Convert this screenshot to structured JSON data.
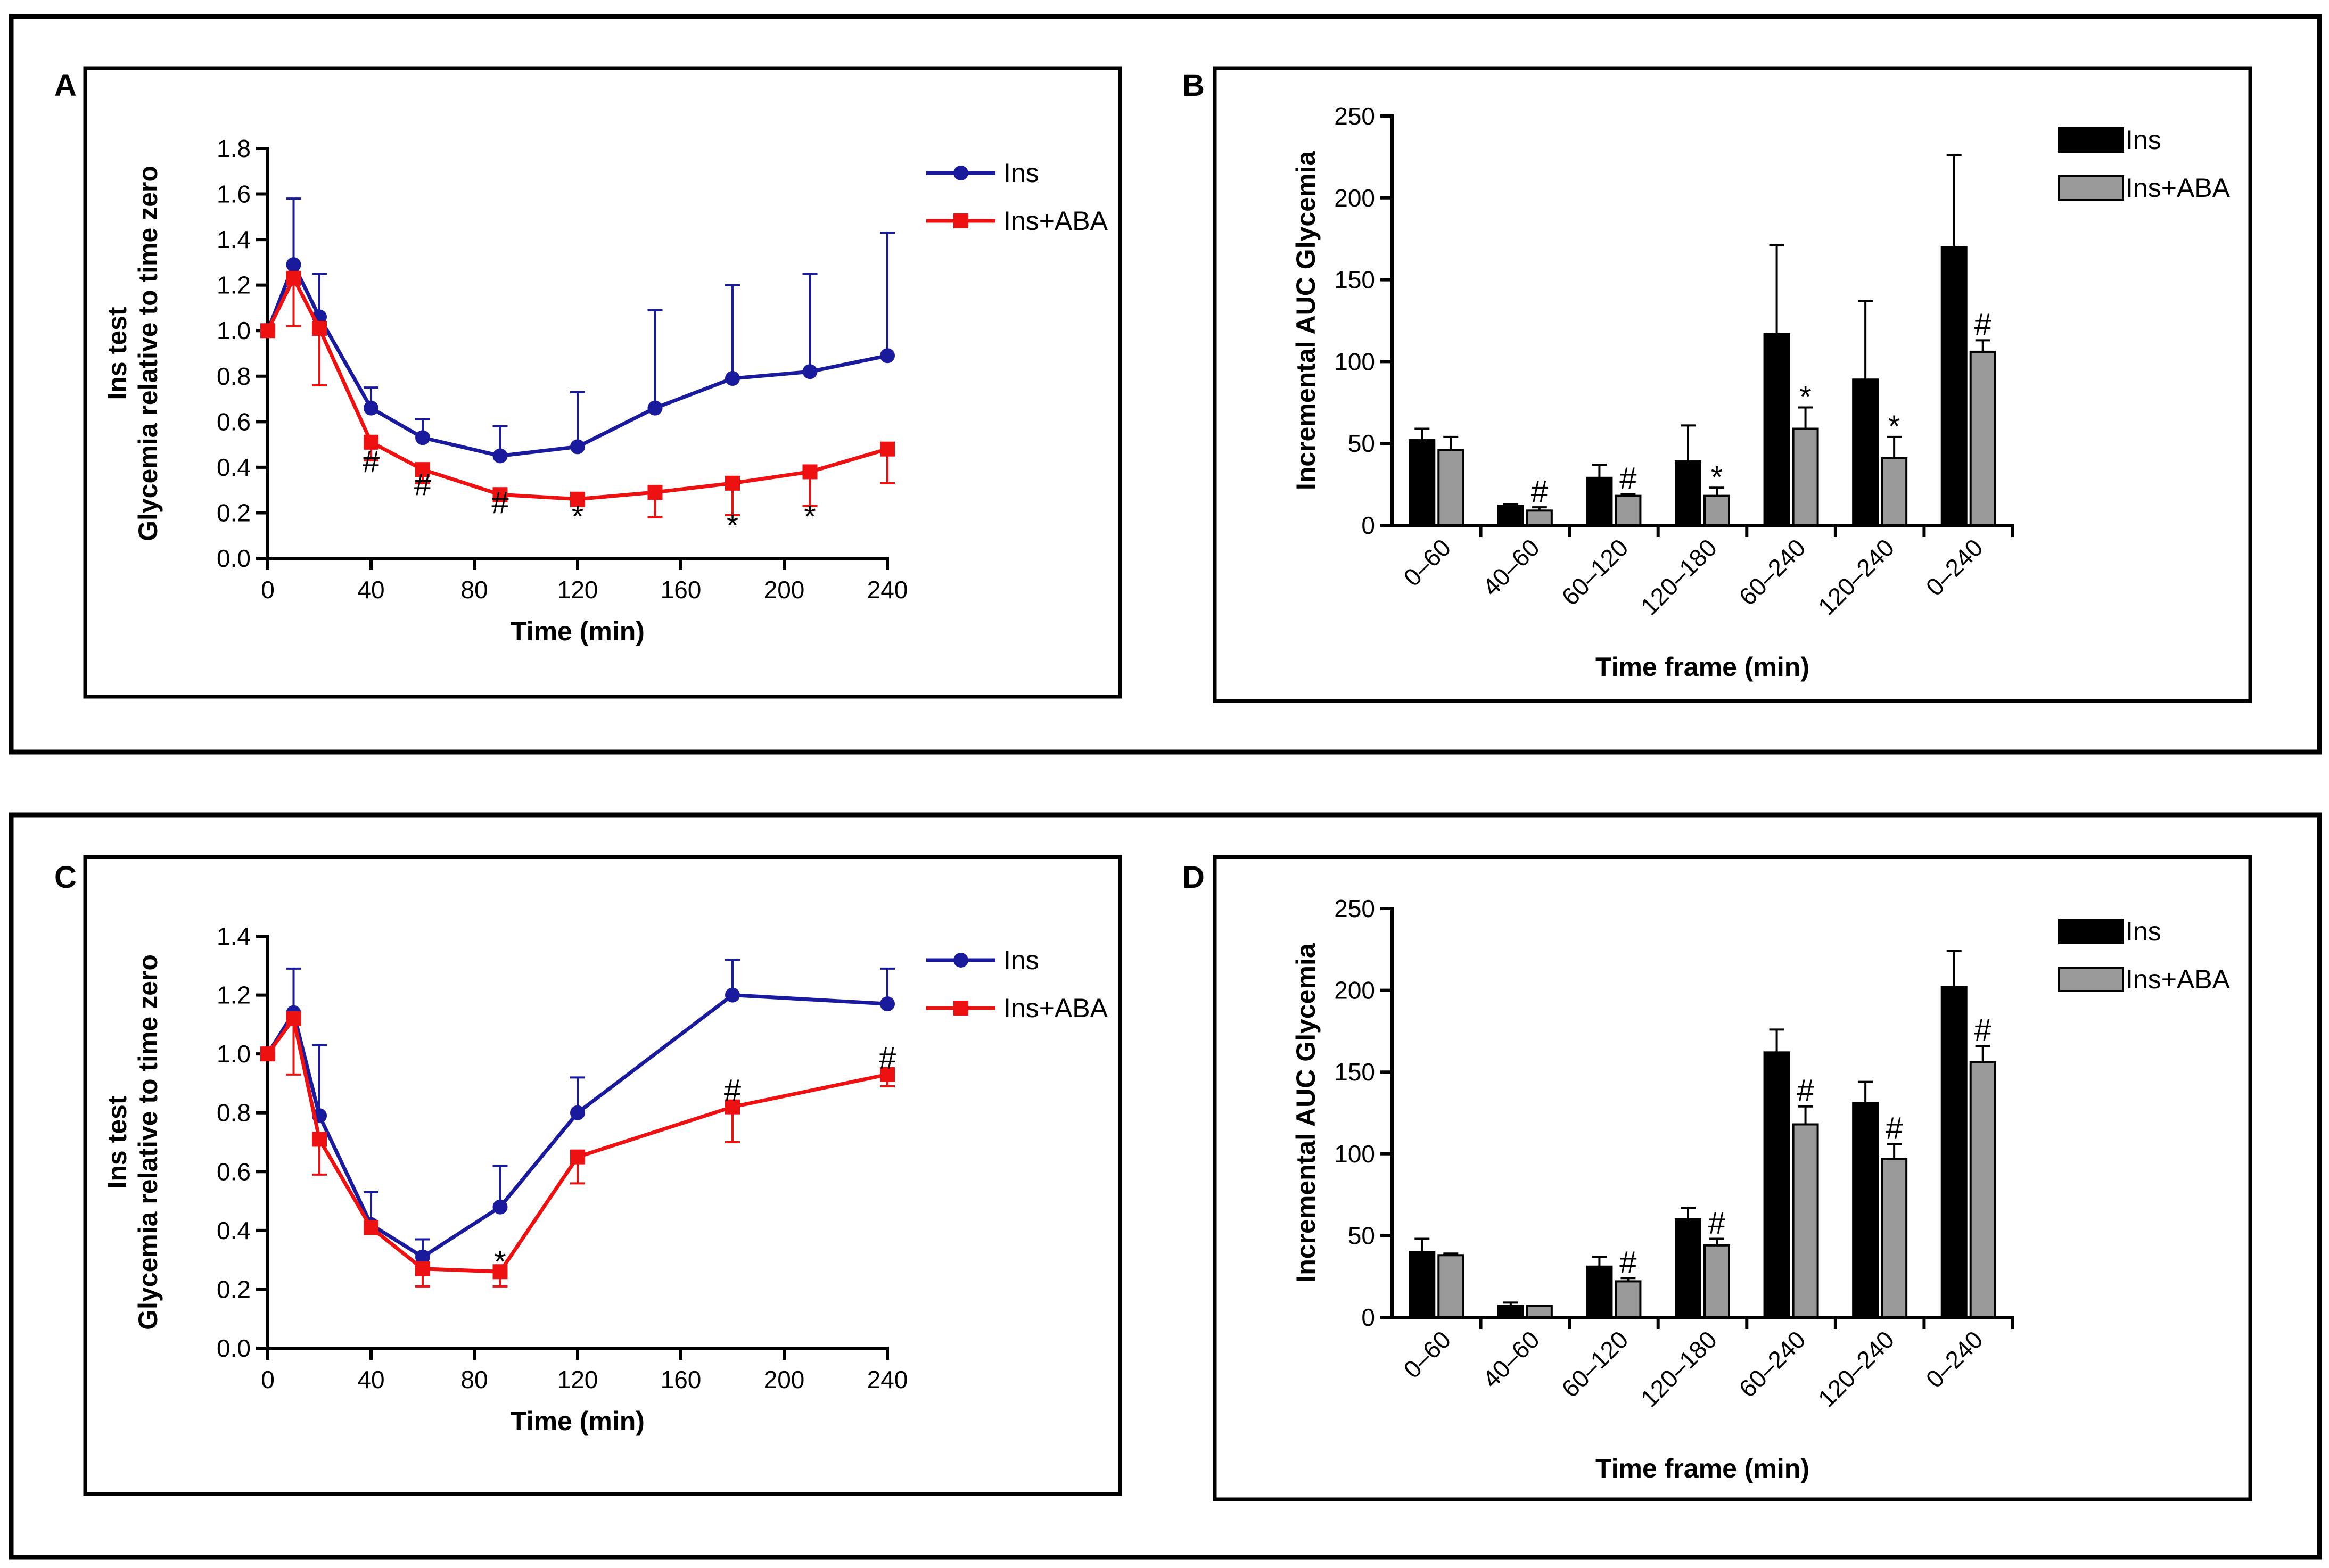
{
  "chart_data": [
    {
      "panel": "A",
      "type": "line",
      "ylabel": [
        "Ins test",
        "Glycemia relative to time zero"
      ],
      "xlabel": "Time (min)",
      "xlim": [
        0,
        240
      ],
      "xticks": [
        0,
        40,
        80,
        120,
        160,
        200,
        240
      ],
      "ylim": [
        0,
        1.8
      ],
      "yticks": [
        0.0,
        0.2,
        0.4,
        0.6,
        0.8,
        1.0,
        1.2,
        1.4,
        1.6,
        1.8
      ],
      "ytick_decimals": 1,
      "legend": "top-right",
      "series": [
        {
          "name": "Ins",
          "color": "#1a1a9c",
          "marker": "circle",
          "x": [
            0,
            10,
            20,
            40,
            60,
            90,
            120,
            150,
            180,
            210,
            240
          ],
          "y": [
            1.0,
            1.29,
            1.06,
            0.66,
            0.53,
            0.45,
            0.49,
            0.66,
            0.79,
            0.82,
            0.89
          ],
          "err": [
            0,
            0.29,
            0.19,
            0.09,
            0.08,
            0.13,
            0.24,
            0.43,
            0.41,
            0.43,
            0.54
          ]
        },
        {
          "name": "Ins+ABA",
          "color": "#ee1111",
          "marker": "square",
          "x": [
            0,
            10,
            20,
            40,
            60,
            90,
            120,
            150,
            180,
            210,
            240
          ],
          "y": [
            1.0,
            1.23,
            1.01,
            0.51,
            0.39,
            0.28,
            0.26,
            0.29,
            0.33,
            0.38,
            0.48
          ],
          "err": [
            0,
            0.21,
            0.25,
            0.08,
            0.06,
            0.03,
            0.03,
            0.11,
            0.14,
            0.15,
            0.15
          ]
        }
      ],
      "annotations": [
        {
          "x": 40,
          "y": 0.43,
          "text": "#"
        },
        {
          "x": 60,
          "y": 0.33,
          "text": "#"
        },
        {
          "x": 90,
          "y": 0.25,
          "text": "#"
        },
        {
          "x": 120,
          "y": 0.23,
          "text": "*"
        },
        {
          "x": 180,
          "y": 0.19,
          "text": "*"
        },
        {
          "x": 210,
          "y": 0.23,
          "text": "*"
        }
      ]
    },
    {
      "panel": "B",
      "type": "bar",
      "ylabel": [
        "Incremental AUC Glycemia"
      ],
      "xlabel": "Time frame (min)",
      "categories": [
        "0–60",
        "40–60",
        "60–120",
        "120–180",
        "60–240",
        "120–240",
        "0–240"
      ],
      "ylim": [
        0,
        250
      ],
      "yticks": [
        0,
        50,
        100,
        150,
        200,
        250
      ],
      "ytick_decimals": 0,
      "legend": "top-right",
      "series": [
        {
          "name": "Ins",
          "color": "#000000",
          "values": [
            52,
            12,
            29,
            39,
            117,
            89,
            170
          ],
          "err": [
            7,
            1,
            8,
            22,
            54,
            48,
            56
          ]
        },
        {
          "name": "Ins+ABA",
          "color": "#9a9a9a",
          "values": [
            46,
            9,
            18,
            18,
            59,
            41,
            106
          ],
          "err": [
            8,
            2,
            1,
            5,
            13,
            13,
            7
          ]
        }
      ],
      "annotations": [
        {
          "category": 1,
          "series": 1,
          "text": "#"
        },
        {
          "category": 2,
          "series": 1,
          "text": "#"
        },
        {
          "category": 3,
          "series": 1,
          "text": "*"
        },
        {
          "category": 4,
          "series": 1,
          "text": "*"
        },
        {
          "category": 5,
          "series": 1,
          "text": "*"
        },
        {
          "category": 6,
          "series": 1,
          "text": "#"
        }
      ]
    },
    {
      "panel": "C",
      "type": "line",
      "ylabel": [
        "Ins test",
        "Glycemia relative to time zero"
      ],
      "xlabel": "Time (min)",
      "xlim": [
        0,
        240
      ],
      "xticks": [
        0,
        40,
        80,
        120,
        160,
        200,
        240
      ],
      "ylim": [
        0,
        1.4
      ],
      "yticks": [
        0.0,
        0.2,
        0.4,
        0.6,
        0.8,
        1.0,
        1.2,
        1.4
      ],
      "ytick_decimals": 1,
      "legend": "top-right",
      "series": [
        {
          "name": "Ins",
          "color": "#1a1a9c",
          "marker": "circle",
          "x": [
            0,
            10,
            20,
            40,
            60,
            90,
            120,
            180,
            240
          ],
          "y": [
            1.0,
            1.14,
            0.79,
            0.42,
            0.31,
            0.48,
            0.8,
            1.2,
            1.17
          ],
          "err": [
            0,
            0.15,
            0.24,
            0.11,
            0.06,
            0.14,
            0.12,
            0.12,
            0.12
          ]
        },
        {
          "name": "Ins+ABA",
          "color": "#ee1111",
          "marker": "square",
          "x": [
            0,
            10,
            20,
            40,
            60,
            90,
            120,
            180,
            240
          ],
          "y": [
            1.0,
            1.12,
            0.71,
            0.41,
            0.27,
            0.26,
            0.65,
            0.82,
            0.93
          ],
          "err": [
            0,
            0.19,
            0.12,
            0.02,
            0.06,
            0.05,
            0.09,
            0.12,
            0.04
          ]
        }
      ],
      "annotations": [
        {
          "x": 90,
          "y": 0.33,
          "text": "*"
        },
        {
          "x": 180,
          "y": 0.88,
          "text": "#"
        },
        {
          "x": 240,
          "y": 0.99,
          "text": "#"
        }
      ]
    },
    {
      "panel": "D",
      "type": "bar",
      "ylabel": [
        "Incremental AUC Glycemia"
      ],
      "xlabel": "Time frame (min)",
      "categories": [
        "0–60",
        "40–60",
        "60–120",
        "120–180",
        "60–240",
        "120–240",
        "0–240"
      ],
      "ylim": [
        0,
        250
      ],
      "yticks": [
        0,
        50,
        100,
        150,
        200,
        250
      ],
      "ytick_decimals": 0,
      "legend": "top-right",
      "series": [
        {
          "name": "Ins",
          "color": "#000000",
          "values": [
            40,
            7,
            31,
            60,
            162,
            131,
            202
          ],
          "err": [
            8,
            2,
            6,
            7,
            14,
            13,
            22
          ]
        },
        {
          "name": "Ins+ABA",
          "color": "#9a9a9a",
          "values": [
            38,
            7,
            22,
            44,
            118,
            97,
            156
          ],
          "err": [
            1,
            0,
            2,
            4,
            11,
            9,
            10
          ]
        }
      ],
      "annotations": [
        {
          "category": 2,
          "series": 1,
          "text": "#"
        },
        {
          "category": 3,
          "series": 1,
          "text": "#"
        },
        {
          "category": 4,
          "series": 1,
          "text": "#"
        },
        {
          "category": 5,
          "series": 1,
          "text": "#"
        },
        {
          "category": 6,
          "series": 1,
          "text": "#"
        }
      ]
    }
  ]
}
